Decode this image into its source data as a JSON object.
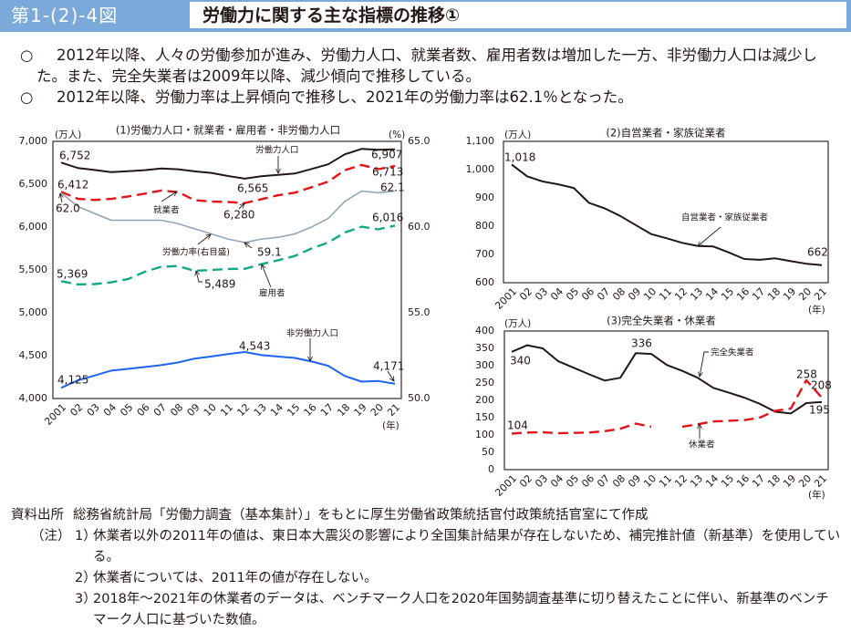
{
  "header": {
    "figure_label": "第1-(2)-4図",
    "title": "労働力に関する主な指標の推移①",
    "accent_color": "#7ba9da"
  },
  "bullets": [
    {
      "mark": "○",
      "text": "2012年以降、人々の労働参加が進み、労働力人口、就業者数、雇用者数は増加した一方、非労働力人口は減少した。また、完全失業者は2009年以降、減少傾向で推移している。"
    },
    {
      "mark": "○",
      "text": "2012年以降、労働力率は上昇傾向で推移し、2021年の労働力率は62.1％となった。"
    }
  ],
  "footer": {
    "source_label": "資料出所",
    "source_text": "総務省統計局「労働力調査（基本集計）」をもとに厚生労働省政策統括官付政策統括官室にて作成",
    "notes_label": "（注）",
    "notes": [
      {
        "num": "1）",
        "text": "休業者以外の2011年の値は、東日本大震災の影響により全国集計結果が存在しないため、補完推計値（新基準）を使用している。"
      },
      {
        "num": "2）",
        "text": "休業者については、2011年の値が存在しない。"
      },
      {
        "num": "3）",
        "text": "2018年～2021年の休業者のデータは、ベンチマーク人口を2020年国勢調査基準に切り替えたことに伴い、新基準のベンチマーク人口に基づいた数値。"
      }
    ]
  },
  "chart_data": [
    {
      "type": "line",
      "title": "(1)労働力人口・就業者・雇用者・非労働力人口",
      "ylabel": "(万人)",
      "ylabel_right": "(%)",
      "xlabel": "(年)",
      "x": [
        2001,
        2002,
        2003,
        2004,
        2005,
        2006,
        2007,
        2008,
        2009,
        2010,
        2011,
        2012,
        2013,
        2014,
        2015,
        2016,
        2017,
        2018,
        2019,
        2020,
        2021
      ],
      "x_tick_labels": [
        "2001",
        "02",
        "03",
        "04",
        "05",
        "06",
        "07",
        "08",
        "09",
        "10",
        "11",
        "12",
        "13",
        "14",
        "15",
        "16",
        "17",
        "18",
        "19",
        "20",
        "21"
      ],
      "ylim": [
        4000,
        7000
      ],
      "yticks": [
        4000,
        4500,
        5000,
        5500,
        6000,
        6500,
        7000
      ],
      "ytick_labels": [
        "4,000",
        "4,500",
        "5,000",
        "5,500",
        "6,000",
        "6,500",
        "7,000"
      ],
      "ylim_right": [
        50,
        65
      ],
      "yticks_right": [
        50,
        55,
        60,
        65
      ],
      "ytick_labels_right": [
        "50.0",
        "55.0",
        "60.0",
        "65.0"
      ],
      "grid": false,
      "series": [
        {
          "name": "労働力人口",
          "axis": "left",
          "color": "#231815",
          "style": "solid",
          "values": [
            6752,
            6689,
            6666,
            6642,
            6651,
            6664,
            6684,
            6674,
            6650,
            6632,
            6596,
            6565,
            6593,
            6609,
            6625,
            6678,
            6732,
            6849,
            6912,
            6902,
            6907
          ]
        },
        {
          "name": "就業者",
          "axis": "left",
          "color": "#e4131a",
          "style": "dashed",
          "values": [
            6412,
            6330,
            6316,
            6329,
            6356,
            6389,
            6427,
            6409,
            6314,
            6298,
            6293,
            6280,
            6326,
            6371,
            6401,
            6465,
            6530,
            6664,
            6724,
            6676,
            6713
          ]
        },
        {
          "name": "雇用者",
          "axis": "left",
          "color": "#13a884",
          "style": "dashed",
          "values": [
            5369,
            5331,
            5335,
            5355,
            5393,
            5478,
            5537,
            5546,
            5489,
            5500,
            5512,
            5513,
            5567,
            5613,
            5663,
            5750,
            5819,
            5936,
            6004,
            5973,
            6016
          ]
        },
        {
          "name": "非労働力人口",
          "axis": "left",
          "color": "#1e64f0",
          "style": "solid",
          "values": [
            4125,
            4212,
            4268,
            4326,
            4346,
            4367,
            4389,
            4420,
            4466,
            4490,
            4518,
            4543,
            4506,
            4489,
            4473,
            4432,
            4382,
            4263,
            4197,
            4204,
            4171
          ]
        },
        {
          "name": "労働力率（右目盛）",
          "axis": "right",
          "color": "#8fa2b6",
          "style": "solid",
          "values": [
            62.0,
            61.2,
            60.8,
            60.4,
            60.4,
            60.4,
            60.4,
            60.2,
            59.9,
            59.6,
            59.3,
            59.1,
            59.3,
            59.4,
            59.6,
            60.0,
            60.5,
            61.5,
            62.1,
            62.0,
            62.1
          ]
        }
      ],
      "data_labels": [
        {
          "series": 0,
          "index": 0,
          "text": "6,752"
        },
        {
          "series": 1,
          "index": 0,
          "text": "6,412"
        },
        {
          "series": 4,
          "index": 0,
          "text": "62.0"
        },
        {
          "series": 0,
          "index": 11,
          "text": "6,565"
        },
        {
          "series": 1,
          "index": 11,
          "text": "6,280"
        },
        {
          "series": 0,
          "index": 20,
          "text": "6,907"
        },
        {
          "series": 1,
          "index": 20,
          "text": "6,713"
        },
        {
          "series": 4,
          "index": 20,
          "text": "62.1"
        },
        {
          "series": 2,
          "index": 20,
          "text": "6,016"
        },
        {
          "series": 4,
          "index": 11,
          "text": "59.1"
        },
        {
          "series": 2,
          "index": 0,
          "text": "5,369"
        },
        {
          "series": 2,
          "index": 8,
          "text": "5,489"
        },
        {
          "series": 3,
          "index": 11,
          "text": "4,543"
        },
        {
          "series": 3,
          "index": 20,
          "text": "4,171"
        },
        {
          "series": 3,
          "index": 0,
          "text": "4,125"
        }
      ],
      "annotations": [
        {
          "series": 0,
          "text": "労働力人口"
        },
        {
          "series": 1,
          "text": "就業者"
        },
        {
          "series": 4,
          "text": "労働力率(右目盛)"
        },
        {
          "series": 2,
          "text": "雇用者"
        },
        {
          "series": 3,
          "text": "非労働力人口"
        }
      ]
    },
    {
      "type": "line",
      "title": "(2)自営業者・家族従業者",
      "ylabel": "(万人)",
      "xlabel": "(年)",
      "x": [
        2001,
        2002,
        2003,
        2004,
        2005,
        2006,
        2007,
        2008,
        2009,
        2010,
        2011,
        2012,
        2013,
        2014,
        2015,
        2016,
        2017,
        2018,
        2019,
        2020,
        2021
      ],
      "x_tick_labels": [
        "2001",
        "02",
        "03",
        "04",
        "05",
        "06",
        "07",
        "08",
        "09",
        "10",
        "11",
        "12",
        "13",
        "14",
        "15",
        "16",
        "17",
        "18",
        "19",
        "20",
        "21"
      ],
      "ylim": [
        600,
        1100
      ],
      "yticks": [
        600,
        700,
        800,
        900,
        1000,
        1100
      ],
      "ytick_labels": [
        "600",
        "700",
        "800",
        "900",
        "1,000",
        "1,100"
      ],
      "grid": false,
      "series": [
        {
          "name": "自営業者・家族従業者",
          "axis": "left",
          "color": "#231815",
          "style": "solid",
          "values": [
            1018,
            976,
            958,
            948,
            935,
            882,
            863,
            836,
            804,
            772,
            757,
            741,
            730,
            728,
            707,
            684,
            681,
            686,
            676,
            667,
            662
          ]
        }
      ],
      "data_labels": [
        {
          "series": 0,
          "index": 0,
          "text": "1,018"
        },
        {
          "series": 0,
          "index": 20,
          "text": "662"
        }
      ],
      "annotations": [
        {
          "series": 0,
          "text": "自営業者・家族従業者"
        }
      ]
    },
    {
      "type": "line",
      "title": "(3)完全失業者・休業者",
      "ylabel": "(万人)",
      "xlabel": "(年)",
      "x": [
        2001,
        2002,
        2003,
        2004,
        2005,
        2006,
        2007,
        2008,
        2009,
        2010,
        2011,
        2012,
        2013,
        2014,
        2015,
        2016,
        2017,
        2018,
        2019,
        2020,
        2021
      ],
      "x_tick_labels": [
        "2001",
        "02",
        "03",
        "04",
        "05",
        "06",
        "07",
        "08",
        "09",
        "10",
        "11",
        "12",
        "13",
        "14",
        "15",
        "16",
        "17",
        "18",
        "19",
        "20",
        "21"
      ],
      "ylim": [
        0,
        400
      ],
      "yticks": [
        0,
        50,
        100,
        150,
        200,
        250,
        300,
        350,
        400
      ],
      "ytick_labels": [
        "0",
        "50",
        "100",
        "150",
        "200",
        "250",
        "300",
        "350",
        "400"
      ],
      "grid": false,
      "series": [
        {
          "name": "完全失業者",
          "axis": "left",
          "color": "#231815",
          "style": "solid",
          "values": [
            340,
            359,
            350,
            313,
            294,
            275,
            257,
            265,
            336,
            334,
            302,
            285,
            265,
            236,
            222,
            208,
            190,
            167,
            162,
            192,
            195
          ]
        },
        {
          "name": "休業者",
          "axis": "left",
          "color": "#e4131a",
          "style": "dashed",
          "values": [
            104,
            107,
            108,
            105,
            106,
            107,
            111,
            118,
            133,
            124,
            null,
            124,
            131,
            139,
            141,
            143,
            150,
            170,
            176,
            258,
            208
          ]
        }
      ],
      "data_labels": [
        {
          "series": 0,
          "index": 0,
          "text": "340"
        },
        {
          "series": 0,
          "index": 8,
          "text": "336"
        },
        {
          "series": 1,
          "index": 0,
          "text": "104"
        },
        {
          "series": 1,
          "index": 19,
          "text": "258"
        },
        {
          "series": 1,
          "index": 20,
          "text": "208"
        },
        {
          "series": 0,
          "index": 20,
          "text": "195"
        }
      ],
      "annotations": [
        {
          "series": 0,
          "text": "完全失業者"
        },
        {
          "series": 1,
          "text": "休業者"
        }
      ]
    }
  ]
}
